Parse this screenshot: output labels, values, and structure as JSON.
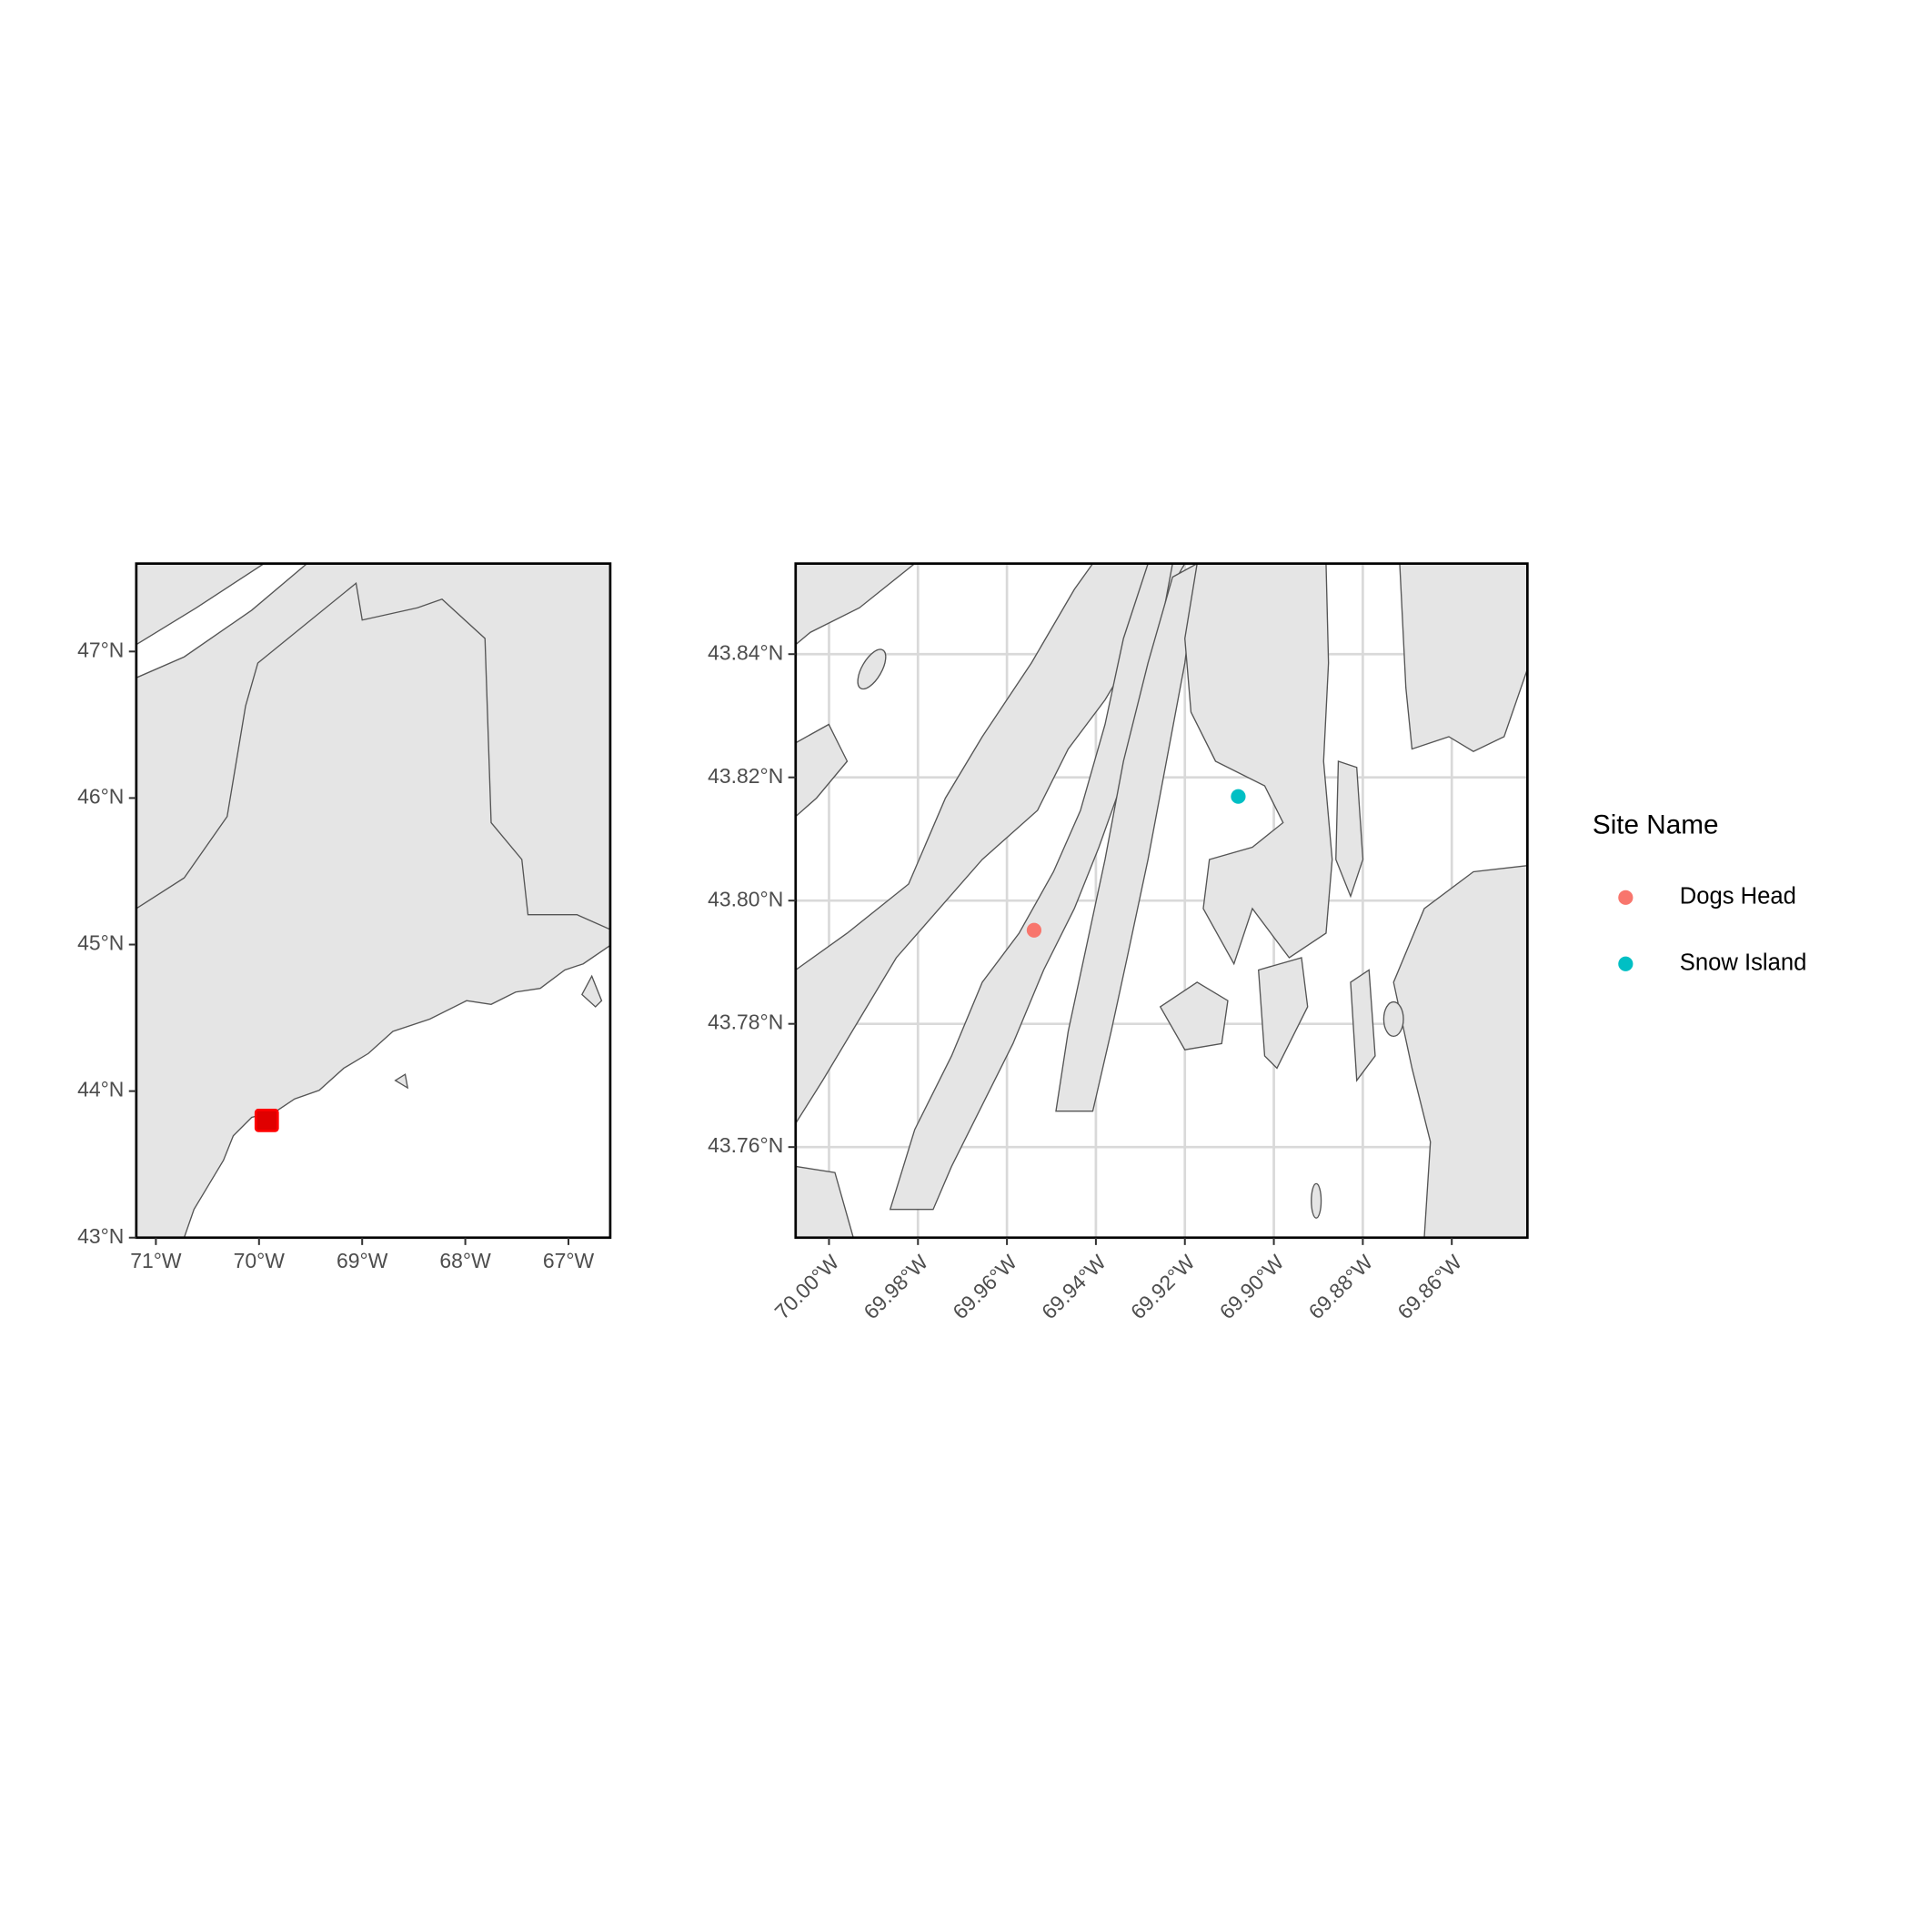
{
  "chart_data": [
    {
      "type": "map",
      "xlim": [
        -71.19,
        -66.595
      ],
      "ylim": [
        43,
        47.6
      ],
      "xticks": [
        {
          "value": -71,
          "label": "71°W"
        },
        {
          "value": -70,
          "label": "70°W"
        },
        {
          "value": -69,
          "label": "69°W"
        },
        {
          "value": -68,
          "label": "68°W"
        },
        {
          "value": -67,
          "label": "67°W"
        }
      ],
      "yticks": [
        {
          "value": 43,
          "label": "43°N"
        },
        {
          "value": 44,
          "label": "44°N"
        },
        {
          "value": 45,
          "label": "45°N"
        },
        {
          "value": 46,
          "label": "46°N"
        },
        {
          "value": 47,
          "label": "47°N"
        }
      ],
      "grid": true
    },
    {
      "type": "map",
      "xlim": [
        -70.0075,
        -69.843
      ],
      "ylim": [
        43.7453,
        43.8547
      ],
      "xticks": [
        {
          "value": -70.0,
          "label": "70.00°W"
        },
        {
          "value": -69.98,
          "label": "69.98°W"
        },
        {
          "value": -69.96,
          "label": "69.96°W"
        },
        {
          "value": -69.94,
          "label": "69.94°W"
        },
        {
          "value": -69.92,
          "label": "69.92°W"
        },
        {
          "value": -69.9,
          "label": "69.90°W"
        },
        {
          "value": -69.88,
          "label": "69.88°W"
        },
        {
          "value": -69.86,
          "label": "69.86°W"
        }
      ],
      "yticks": [
        {
          "value": 43.76,
          "label": "43.76°N"
        },
        {
          "value": 43.78,
          "label": "43.78°N"
        },
        {
          "value": 43.8,
          "label": "43.80°N"
        },
        {
          "value": 43.82,
          "label": "43.82°N"
        },
        {
          "value": 43.84,
          "label": "43.84°N"
        }
      ],
      "grid": true,
      "legend_title": "Site Name",
      "series": [
        {
          "name": "Dogs Head",
          "color": "#F8766D",
          "x": [
            -69.9539
          ],
          "values": [
            43.7952
          ]
        },
        {
          "name": "Snow Island",
          "color": "#00BFC4",
          "x": [
            -69.908
          ],
          "values": [
            43.8169
          ]
        }
      ]
    }
  ]
}
